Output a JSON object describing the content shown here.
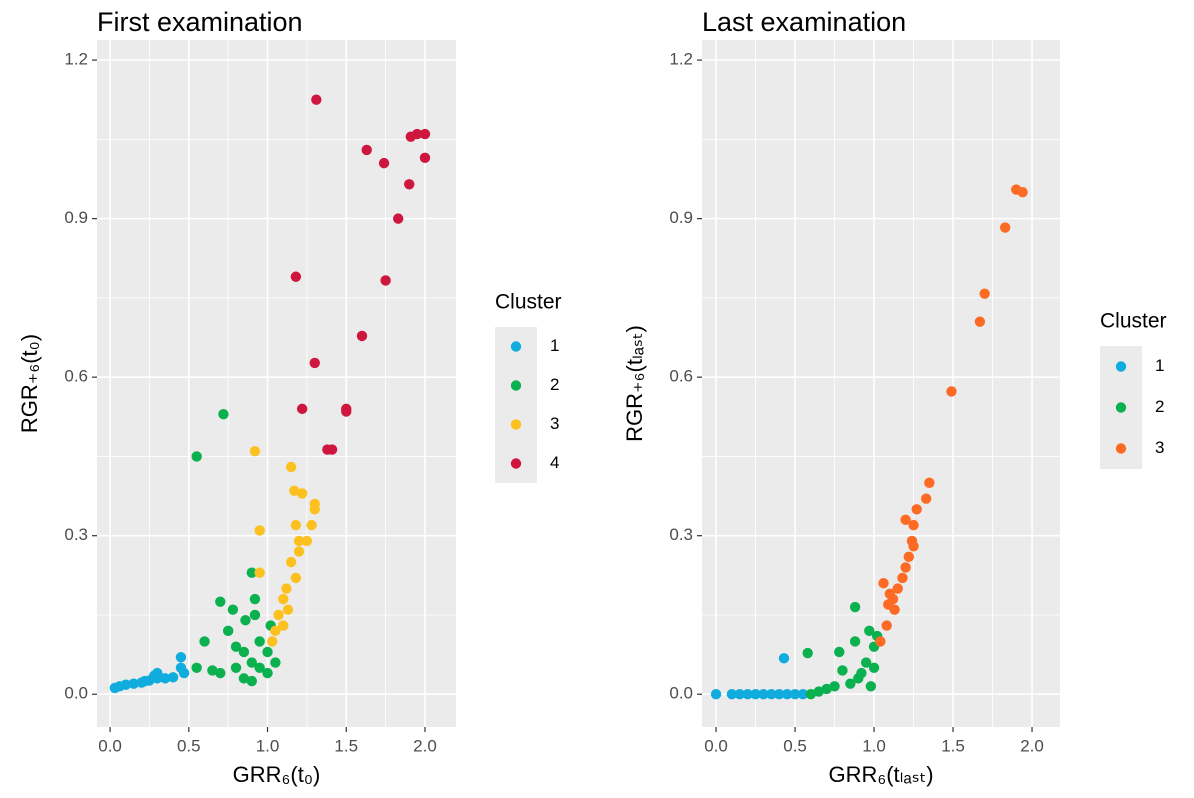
{
  "chart_data": [
    {
      "type": "scatter",
      "title": "First examination",
      "xlabel": "GRR₆(t₀)",
      "ylabel": "RGR₊₆(t₀)",
      "legend_title": "Cluster",
      "legend": "right",
      "grid": true,
      "xlim": [
        -0.083,
        2.197
      ],
      "ylim": [
        -0.062,
        1.238
      ],
      "xticks": [
        {
          "value": 0,
          "label": "0.0"
        },
        0.5,
        {
          "value": 1,
          "label": "1.0"
        },
        1.5,
        {
          "value": 2,
          "label": "2.0"
        }
      ],
      "yticks": [
        {
          "value": 0,
          "label": "0.0"
        },
        0.3,
        0.6,
        0.9,
        1.2
      ],
      "series": [
        {
          "name": "1",
          "color": "#10ACDD",
          "x": [
            0.03,
            0.06,
            0.1,
            0.15,
            0.2,
            0.22,
            0.25,
            0.28,
            0.3,
            0.3,
            0.35,
            0.4,
            0.45,
            0.45,
            0.47
          ],
          "y": [
            0.012,
            0.015,
            0.018,
            0.02,
            0.022,
            0.025,
            0.026,
            0.035,
            0.03,
            0.04,
            0.03,
            0.032,
            0.07,
            0.05,
            0.04
          ]
        },
        {
          "name": "2",
          "color": "#0BB04F",
          "x": [
            0.55,
            0.72,
            0.9,
            0.92,
            0.7,
            0.78,
            0.86,
            0.6,
            0.75,
            0.8,
            0.85,
            0.9,
            0.95,
            1.0,
            0.55,
            0.65,
            0.7,
            0.85,
            0.95,
            1.0,
            1.02,
            0.92,
            1.05,
            0.8,
            0.9
          ],
          "y": [
            0.45,
            0.53,
            0.23,
            0.18,
            0.175,
            0.16,
            0.14,
            0.1,
            0.12,
            0.09,
            0.08,
            0.06,
            0.05,
            0.04,
            0.05,
            0.045,
            0.04,
            0.03,
            0.1,
            0.08,
            0.13,
            0.15,
            0.06,
            0.05,
            0.025
          ]
        },
        {
          "name": "3",
          "color": "#FCC11F",
          "x": [
            0.92,
            1.15,
            1.17,
            1.22,
            1.3,
            1.3,
            1.28,
            1.18,
            1.2,
            1.25,
            1.15,
            1.18,
            1.12,
            1.1,
            1.07,
            1.05,
            1.03,
            0.95,
            0.95,
            1.1,
            1.2,
            1.13
          ],
          "y": [
            0.46,
            0.43,
            0.385,
            0.38,
            0.36,
            0.35,
            0.32,
            0.32,
            0.29,
            0.29,
            0.25,
            0.22,
            0.2,
            0.18,
            0.15,
            0.12,
            0.1,
            0.31,
            0.23,
            0.13,
            0.27,
            0.16
          ]
        },
        {
          "name": "4",
          "color": "#CF163F",
          "x": [
            1.31,
            1.63,
            1.74,
            1.91,
            1.95,
            2.0,
            2.0,
            1.9,
            1.83,
            1.18,
            1.75,
            1.6,
            1.3,
            1.5,
            1.5,
            1.22,
            1.38,
            1.41
          ],
          "y": [
            1.125,
            1.03,
            1.005,
            1.055,
            1.06,
            1.06,
            1.015,
            0.965,
            0.9,
            0.79,
            0.783,
            0.678,
            0.627,
            0.54,
            0.535,
            0.54,
            0.463,
            0.463
          ]
        }
      ]
    },
    {
      "type": "scatter",
      "title": "Last examination",
      "xlabel": "GRR₆(tₗₐₛₜ)",
      "ylabel": "RGR₊₆(tₗₐₛₜ)",
      "legend_title": "Cluster",
      "legend": "right",
      "grid": true,
      "xlim": [
        -0.089,
        2.177
      ],
      "ylim": [
        -0.062,
        1.238
      ],
      "xticks": [
        {
          "value": 0,
          "label": "0.0"
        },
        0.5,
        {
          "value": 1,
          "label": "1.0"
        },
        1.5,
        {
          "value": 2,
          "label": "2.0"
        }
      ],
      "yticks": [
        {
          "value": 0,
          "label": "0.0"
        },
        0.3,
        0.6,
        0.9,
        1.2
      ],
      "series": [
        {
          "name": "1",
          "color": "#10ACDD",
          "x": [
            0.0,
            0.1,
            0.15,
            0.2,
            0.25,
            0.3,
            0.35,
            0.4,
            0.45,
            0.5,
            0.55,
            0.43
          ],
          "y": [
            0,
            0,
            0,
            0,
            0,
            0,
            0,
            0,
            0,
            0,
            0,
            0.068
          ]
        },
        {
          "name": "2",
          "color": "#0BB04F",
          "x": [
            0.58,
            0.6,
            0.65,
            0.7,
            0.75,
            0.78,
            0.8,
            0.85,
            0.88,
            0.88,
            0.9,
            0.95,
            0.97,
            1.0,
            1.02,
            0.92,
            0.98,
            1.0
          ],
          "y": [
            0.078,
            0,
            0.005,
            0.01,
            0.015,
            0.08,
            0.045,
            0.02,
            0.165,
            0.1,
            0.03,
            0.06,
            0.12,
            0.09,
            0.11,
            0.04,
            0.015,
            0.05
          ]
        },
        {
          "name": "3",
          "color": "#FC6A24",
          "x": [
            1.06,
            1.09,
            1.1,
            1.13,
            1.12,
            1.15,
            1.18,
            1.2,
            1.22,
            1.2,
            1.25,
            1.25,
            1.27,
            1.33,
            1.35,
            1.24,
            1.49,
            1.67,
            1.7,
            1.83,
            1.9,
            1.94,
            1.04,
            1.08
          ],
          "y": [
            0.21,
            0.17,
            0.19,
            0.16,
            0.18,
            0.2,
            0.22,
            0.24,
            0.26,
            0.33,
            0.28,
            0.32,
            0.35,
            0.37,
            0.4,
            0.29,
            0.573,
            0.705,
            0.758,
            0.883,
            0.955,
            0.95,
            0.1,
            0.13
          ]
        }
      ]
    }
  ]
}
